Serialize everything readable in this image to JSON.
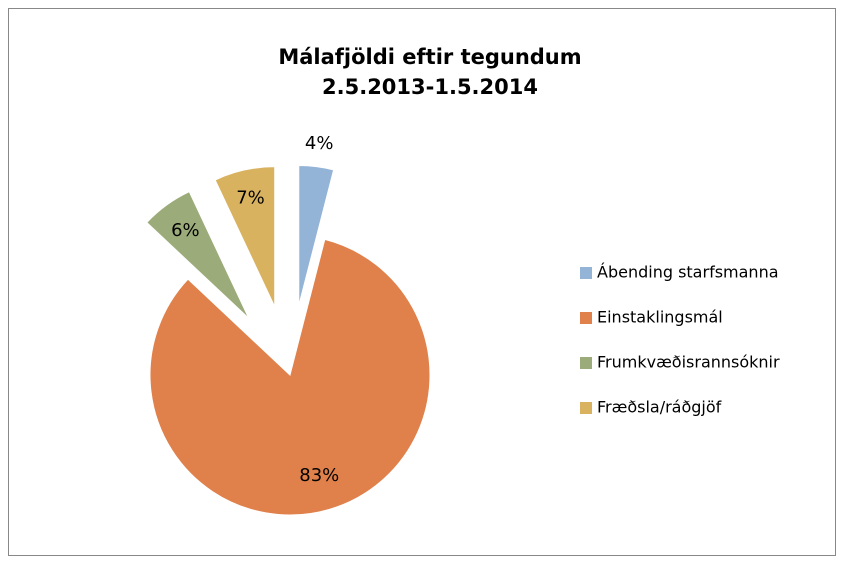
{
  "chart_data": {
    "type": "pie",
    "title": "Málafjöldi eftir tegundum",
    "subtitle": "2.5.2013-1.5.2014",
    "categories": [
      "Ábending starfsmanna",
      "Einstaklingsmál",
      "Frumkvæðisrannsóknir",
      "Fræðsla/ráðgjöf"
    ],
    "values": [
      4,
      83,
      6,
      7
    ],
    "value_labels": [
      "4%",
      "83%",
      "6%",
      "7%"
    ],
    "colors": [
      "#93b3d7",
      "#e0804a",
      "#9bab7a",
      "#d9b25f"
    ],
    "legend": "right"
  }
}
